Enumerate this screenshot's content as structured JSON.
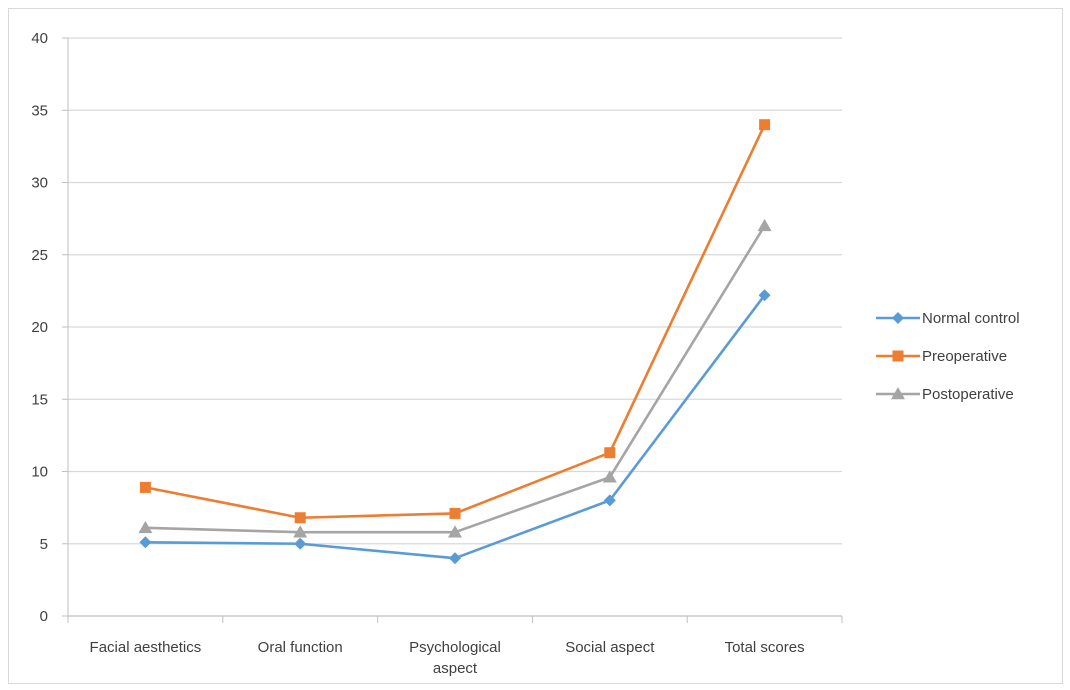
{
  "chart_data": {
    "type": "line",
    "categories": [
      "Facial aesthetics",
      "Oral function",
      "Psychological aspect",
      "Social aspect",
      "Total scores"
    ],
    "series": [
      {
        "name": "Normal control",
        "values": [
          5.1,
          5.0,
          4.0,
          8.0,
          22.2
        ],
        "color": "#5b9bd5",
        "marker": "diamond"
      },
      {
        "name": "Preoperative",
        "values": [
          8.9,
          6.8,
          7.1,
          11.3,
          34.0
        ],
        "color": "#ed7d31",
        "marker": "square"
      },
      {
        "name": "Postoperative",
        "values": [
          6.1,
          5.8,
          5.8,
          9.6,
          27.0
        ],
        "color": "#a5a5a5",
        "marker": "triangle"
      }
    ],
    "ylim": [
      0,
      40
    ],
    "yticks": [
      "0",
      "5",
      "10",
      "15",
      "20",
      "25",
      "30",
      "35",
      "40"
    ],
    "grid": true,
    "legend_position": "right"
  }
}
